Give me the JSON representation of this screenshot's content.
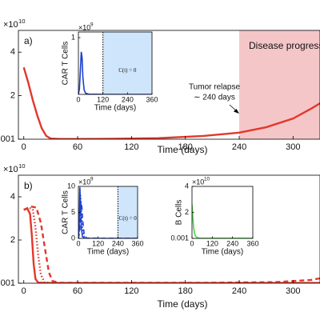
{
  "chart_data": [
    {
      "type": "line",
      "panel_label": "a)",
      "multiplier": {
        "base": "×10",
        "exponent": "10"
      },
      "xlabel": "Time (days)",
      "xlim": [
        -6,
        330
      ],
      "xticks": [
        0,
        60,
        120,
        180,
        240,
        300
      ],
      "ylim": [
        0,
        5
      ],
      "yticks": [
        {
          "value": 0.001,
          "label": "0.001"
        },
        2,
        4
      ],
      "shaded_from": 240,
      "shaded_color": "#f4c6c8",
      "shaded_label": "Disease progress",
      "annotations": [
        "Tumor relapse",
        "∼ 240 days"
      ],
      "series": [
        {
          "color": "#e2382b",
          "dash": "solid",
          "x": [
            0,
            5,
            10,
            15,
            20,
            25,
            30,
            40,
            60,
            100,
            150,
            200,
            240,
            270,
            300,
            320,
            340
          ],
          "values": [
            3.3,
            2.6,
            1.8,
            1.1,
            0.5,
            0.15,
            0.03,
            0.01,
            0.01,
            0.02,
            0.05,
            0.15,
            0.3,
            0.55,
            0.95,
            1.4,
            1.9
          ]
        }
      ]
    },
    {
      "type": "line",
      "ylabel": "CAR T Cells",
      "xlabel": "Time (days)",
      "multiplier": {
        "base": "×10",
        "exponent": "9"
      },
      "xlim": [
        0,
        360
      ],
      "xticks": [
        0,
        120,
        240,
        360
      ],
      "ylim": [
        0,
        1.1
      ],
      "yticks": [
        1
      ],
      "shaded_from": 120,
      "shaded_color": "#cfe5fb",
      "shaded_label": "C(t) = 0",
      "vline": 120,
      "series": [
        {
          "color": "#1c3fd0",
          "dash": "solid",
          "x": [
            0,
            5,
            10,
            14,
            18,
            22,
            28,
            35,
            50,
            120,
            360
          ],
          "values": [
            0,
            0.1,
            0.45,
            0.75,
            0.65,
            0.3,
            0.08,
            0.02,
            0.005,
            0,
            0
          ]
        }
      ]
    },
    {
      "type": "line",
      "panel_label": "b)",
      "multiplier": {
        "base": "×10",
        "exponent": "10"
      },
      "xlabel": "Time (days)",
      "xlim": [
        -6,
        330
      ],
      "xticks": [
        0,
        60,
        120,
        180,
        240,
        300
      ],
      "ylim": [
        0,
        5
      ],
      "yticks": [
        {
          "value": 0.001,
          "label": "0.001"
        },
        2,
        4
      ],
      "series": [
        {
          "color": "#e2382b",
          "dash": "solid",
          "x": [
            0,
            4,
            7,
            9,
            11,
            13,
            16,
            25,
            340
          ],
          "values": [
            3.4,
            3.45,
            3.2,
            2.2,
            0.9,
            0.2,
            0.03,
            0.01,
            0.01
          ]
        },
        {
          "color": "#e2382b",
          "dash": "dotted",
          "x": [
            0,
            6,
            10,
            13,
            16,
            19,
            23,
            30,
            340
          ],
          "values": [
            3.4,
            3.5,
            3.4,
            2.6,
            1.3,
            0.4,
            0.05,
            0.01,
            0.01
          ]
        },
        {
          "color": "#e2382b",
          "dash": "dashed",
          "x": [
            0,
            8,
            14,
            19,
            24,
            28,
            32,
            40,
            200,
            280,
            320,
            340
          ],
          "values": [
            3.4,
            3.55,
            3.5,
            2.8,
            1.5,
            0.5,
            0.1,
            0.02,
            0.02,
            0.05,
            0.15,
            0.3
          ]
        }
      ]
    },
    {
      "type": "line",
      "ylabel": "CAR T Cells",
      "xlabel": "Time (days)",
      "multiplier": {
        "base": "×10",
        "exponent": "9"
      },
      "xlim": [
        0,
        360
      ],
      "xticks": [
        0,
        120,
        240,
        360
      ],
      "ylim": [
        0,
        10
      ],
      "yticks": [
        0,
        5,
        10
      ],
      "shaded_from": 240,
      "shaded_color": "#cfe5fb",
      "shaded_label": "C(t) = 0",
      "vline": 240,
      "series": [
        {
          "color": "#1c3fd0",
          "dash": "solid",
          "x": [
            0,
            5,
            9,
            13,
            18,
            25,
            40,
            360
          ],
          "values": [
            0,
            3,
            9.8,
            6,
            2,
            0.3,
            0,
            0
          ]
        },
        {
          "color": "#1c3fd0",
          "dash": "dotted",
          "x": [
            0,
            7,
            12,
            16,
            22,
            30,
            45,
            360
          ],
          "values": [
            0,
            2,
            8.5,
            7,
            3,
            0.6,
            0,
            0
          ]
        },
        {
          "color": "#1c3fd0",
          "dash": "dashed",
          "x": [
            0,
            9,
            15,
            20,
            26,
            35,
            50,
            360
          ],
          "values": [
            0,
            1.5,
            7,
            6.5,
            3.5,
            0.8,
            0.05,
            0
          ]
        }
      ]
    },
    {
      "type": "line",
      "ylabel": "B Cells",
      "xlabel": "Time (days)",
      "multiplier": {
        "base": "×10",
        "exponent": "10"
      },
      "xlim": [
        0,
        360
      ],
      "xticks": [
        0,
        120,
        240,
        360
      ],
      "ylim": [
        0,
        4
      ],
      "yticks": [
        {
          "value": 0.001,
          "label": "0.001"
        },
        2,
        4
      ],
      "series": [
        {
          "color": "#4fd34b",
          "dash": "solid",
          "x": [
            0,
            5,
            10,
            15,
            20,
            30,
            45,
            60,
            360
          ],
          "values": [
            2.6,
            1.6,
            0.8,
            0.4,
            0.2,
            0.06,
            0.02,
            0.01,
            0.01
          ]
        }
      ]
    }
  ]
}
